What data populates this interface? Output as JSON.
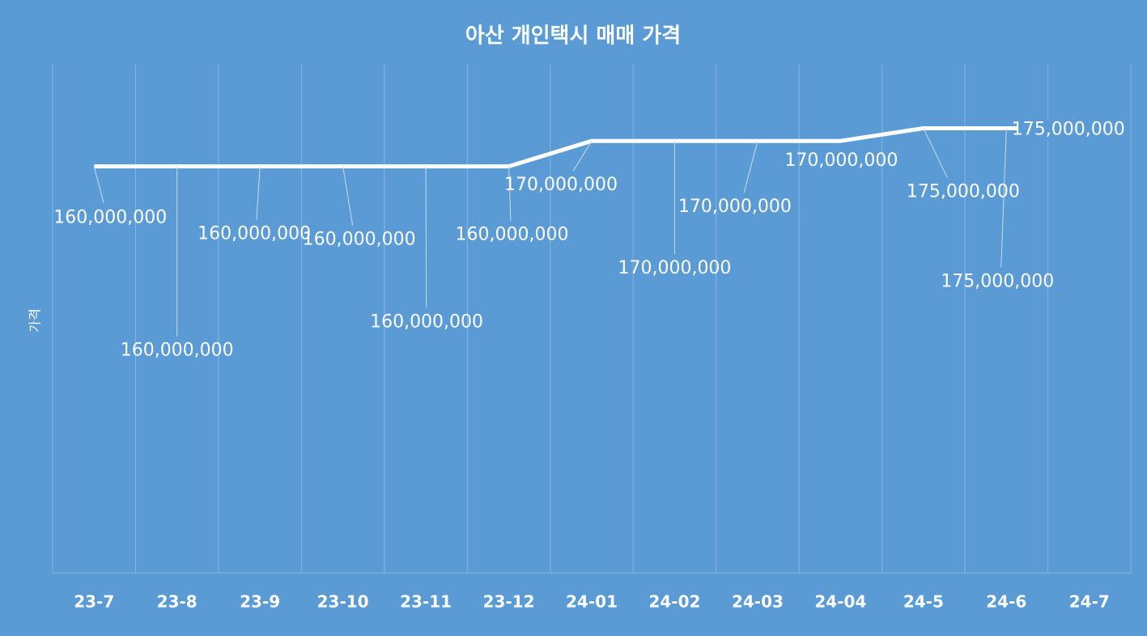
{
  "chart_data": {
    "type": "line",
    "title": "아산 개인택시 매매 가격",
    "y_label": "가격",
    "categories": [
      "23-7",
      "23-8",
      "23-9",
      "23-10",
      "23-11",
      "23-12",
      "24-01",
      "24-02",
      "24-03",
      "24-04",
      "24-5",
      "24-6",
      "24-7"
    ],
    "series": [
      {
        "name": "가격",
        "color": "#ffffff",
        "values": [
          160000000,
          160000000,
          160000000,
          160000000,
          160000000,
          160000000,
          170000000,
          170000000,
          170000000,
          170000000,
          175000000,
          175000000,
          175000000
        ],
        "value_labels": [
          "160,000,000",
          "160,000,000",
          "160,000,000",
          "160,000,000",
          "160,000,000",
          "160,000,000",
          "170,000,000",
          "170,000,000",
          "170,000,000",
          "170,000,000",
          "175,000,000",
          "175,000,000",
          "175,000,000"
        ]
      }
    ],
    "ylim": [
      0,
      200000000
    ],
    "grid": true
  }
}
